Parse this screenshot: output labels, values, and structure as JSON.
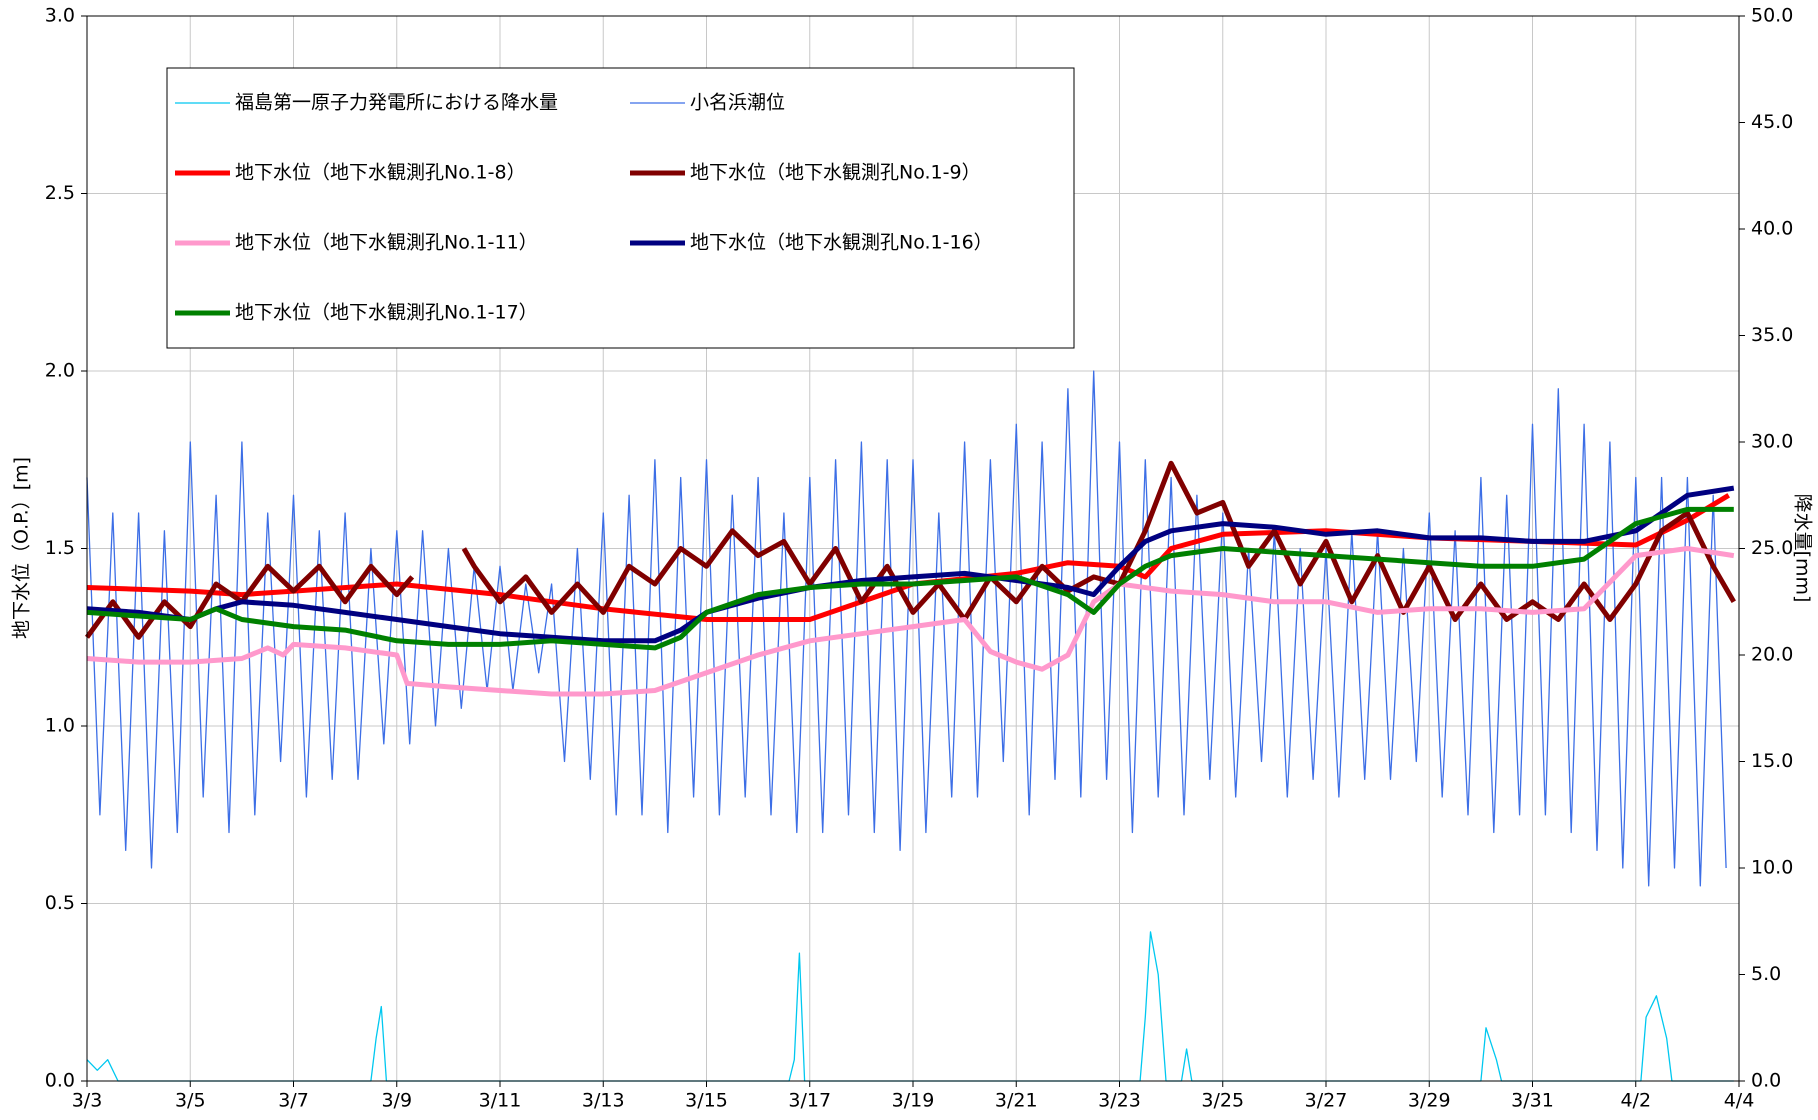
{
  "chart_data": {
    "type": "line",
    "ylabel": "地下水位（O.P.）[m]",
    "y2label": "降水量[mm]",
    "xlim": [
      0,
      32
    ],
    "xticks": [
      {
        "value": 0,
        "label": "3/3"
      },
      {
        "value": 2,
        "label": "3/5"
      },
      {
        "value": 4,
        "label": "3/7"
      },
      {
        "value": 6,
        "label": "3/9"
      },
      {
        "value": 8,
        "label": "3/11"
      },
      {
        "value": 10,
        "label": "3/13"
      },
      {
        "value": 12,
        "label": "3/15"
      },
      {
        "value": 14,
        "label": "3/17"
      },
      {
        "value": 16,
        "label": "3/19"
      },
      {
        "value": 18,
        "label": "3/21"
      },
      {
        "value": 20,
        "label": "3/23"
      },
      {
        "value": 22,
        "label": "3/25"
      },
      {
        "value": 24,
        "label": "3/27"
      },
      {
        "value": 26,
        "label": "3/29"
      },
      {
        "value": 28,
        "label": "3/31"
      },
      {
        "value": 30,
        "label": "4/2"
      },
      {
        "value": 32,
        "label": "4/4"
      }
    ],
    "ylim": [
      0,
      3
    ],
    "yticks": [
      {
        "value": 0,
        "label": "0.0"
      },
      0.5,
      {
        "value": 1,
        "label": "1.0"
      },
      1.5,
      {
        "value": 2,
        "label": "2.0"
      },
      2.5,
      {
        "value": 3,
        "label": "3.0"
      }
    ],
    "y2lim": [
      0,
      50
    ],
    "y2ticks": [
      {
        "value": 0,
        "label": "0.0"
      },
      {
        "value": 5,
        "label": "5.0"
      },
      {
        "value": 10,
        "label": "10.0"
      },
      {
        "value": 15,
        "label": "15.0"
      },
      {
        "value": 20,
        "label": "20.0"
      },
      {
        "value": 25,
        "label": "25.0"
      },
      {
        "value": 30,
        "label": "30.0"
      },
      {
        "value": 35,
        "label": "35.0"
      },
      {
        "value": 40,
        "label": "40.0"
      },
      {
        "value": 45,
        "label": "45.0"
      },
      {
        "value": 50,
        "label": "50.0"
      }
    ],
    "grid": true,
    "series": [
      {
        "name": "福島第一原子力発電所における降水量",
        "color": "#00c8f0",
        "style": "thin",
        "axis": "y2",
        "x": [
          0,
          0.2,
          0.4,
          0.6,
          5.5,
          5.6,
          5.7,
          5.8,
          13.6,
          13.7,
          13.8,
          13.9,
          20.4,
          20.5,
          20.6,
          20.75,
          20.9,
          21.2,
          21.3,
          21.4,
          27.0,
          27.1,
          27.3,
          27.4,
          30.1,
          30.2,
          30.4,
          30.6,
          30.7,
          31.9
        ],
        "values": [
          1,
          0.5,
          1,
          0,
          0,
          2,
          3.5,
          0,
          0,
          1,
          6,
          0,
          0,
          3,
          7,
          5,
          0,
          0,
          1.5,
          0,
          0,
          2.5,
          1,
          0,
          0,
          3,
          4,
          2,
          0,
          0
        ]
      },
      {
        "name": "小名浜潮位",
        "color": "#3c6ee6",
        "style": "thin",
        "x": [
          0,
          0.25,
          0.5,
          0.75,
          1,
          1.25,
          1.5,
          1.75,
          2,
          2.25,
          2.5,
          2.75,
          3,
          3.25,
          3.5,
          3.75,
          4,
          4.25,
          4.5,
          4.75,
          5,
          5.25,
          5.5,
          5.75,
          6,
          6.25,
          6.5,
          6.75,
          7,
          7.25,
          7.5,
          7.75,
          8,
          8.25,
          8.5,
          8.75,
          9,
          9.25,
          9.5,
          9.75,
          10,
          10.25,
          10.5,
          10.75,
          11,
          11.25,
          11.5,
          11.75,
          12,
          12.25,
          12.5,
          12.75,
          13,
          13.25,
          13.5,
          13.75,
          14,
          14.25,
          14.5,
          14.75,
          15,
          15.25,
          15.5,
          15.75,
          16,
          16.25,
          16.5,
          16.75,
          17,
          17.25,
          17.5,
          17.75,
          18,
          18.25,
          18.5,
          18.75,
          19,
          19.25,
          19.5,
          19.75,
          20,
          20.25,
          20.5,
          20.75,
          21,
          21.25,
          21.5,
          21.75,
          22,
          22.25,
          22.5,
          22.75,
          23,
          23.25,
          23.5,
          23.75,
          24,
          24.25,
          24.5,
          24.75,
          25,
          25.25,
          25.5,
          25.75,
          26,
          26.25,
          26.5,
          26.75,
          27,
          27.25,
          27.5,
          27.75,
          28,
          28.25,
          28.5,
          28.75,
          29,
          29.25,
          29.5,
          29.75,
          30,
          30.25,
          30.5,
          30.75,
          31,
          31.25,
          31.5,
          31.75
        ],
        "values": [
          1.7,
          0.75,
          1.6,
          0.65,
          1.6,
          0.6,
          1.55,
          0.7,
          1.8,
          0.8,
          1.65,
          0.7,
          1.8,
          0.75,
          1.6,
          0.9,
          1.65,
          0.8,
          1.55,
          0.85,
          1.6,
          0.85,
          1.5,
          0.95,
          1.55,
          0.95,
          1.55,
          1.0,
          1.5,
          1.05,
          1.45,
          1.1,
          1.45,
          1.1,
          1.4,
          1.15,
          1.4,
          0.9,
          1.5,
          0.85,
          1.6,
          0.75,
          1.65,
          0.75,
          1.75,
          0.7,
          1.7,
          0.8,
          1.75,
          0.75,
          1.65,
          0.8,
          1.7,
          0.75,
          1.6,
          0.7,
          1.7,
          0.7,
          1.75,
          0.75,
          1.8,
          0.7,
          1.75,
          0.65,
          1.75,
          0.7,
          1.6,
          0.8,
          1.8,
          0.8,
          1.75,
          0.9,
          1.85,
          0.75,
          1.8,
          0.85,
          1.95,
          0.8,
          2.0,
          0.85,
          1.8,
          0.7,
          1.75,
          0.8,
          1.7,
          0.75,
          1.65,
          0.85,
          1.6,
          0.8,
          1.5,
          0.9,
          1.55,
          0.8,
          1.5,
          0.85,
          1.5,
          0.8,
          1.55,
          0.85,
          1.55,
          0.85,
          1.5,
          0.9,
          1.6,
          0.8,
          1.55,
          0.75,
          1.7,
          0.7,
          1.65,
          0.75,
          1.85,
          0.75,
          1.95,
          0.7,
          1.85,
          0.65,
          1.8,
          0.6,
          1.7,
          0.55,
          1.7,
          0.6,
          1.7,
          0.55,
          1.65,
          0.6
        ]
      },
      {
        "name": "地下水位（地下水観測孔No.1-8）",
        "color": "#ff0000",
        "style": "thick",
        "x": [
          0,
          2,
          3,
          4,
          6,
          8,
          9,
          10,
          12,
          14,
          15,
          16,
          18,
          19,
          20,
          20.5,
          21,
          22,
          24,
          26,
          28,
          30,
          31,
          31.8
        ],
        "values": [
          1.39,
          1.38,
          1.37,
          1.38,
          1.4,
          1.37,
          1.35,
          1.33,
          1.3,
          1.3,
          1.35,
          1.4,
          1.43,
          1.46,
          1.45,
          1.42,
          1.5,
          1.54,
          1.55,
          1.53,
          1.52,
          1.51,
          1.58,
          1.65
        ]
      },
      {
        "name": "地下水位（地下水観測孔No.1-9）",
        "color": "#800000",
        "style": "thick",
        "x": [
          0,
          0.5,
          1,
          1.5,
          2,
          2.5,
          3,
          3.5,
          4,
          4.5,
          5,
          5.5,
          6,
          6.3,
          6.8,
          7.3,
          7.5,
          8,
          8.5,
          9,
          9.5,
          10,
          10.5,
          11,
          11.5,
          12,
          12.5,
          13,
          13.5,
          14,
          14.5,
          15,
          15.5,
          16,
          16.5,
          17,
          17.5,
          18,
          18.5,
          19,
          19.5,
          20,
          20.5,
          21,
          21.5,
          22,
          22.5,
          23,
          23.5,
          24,
          24.5,
          25,
          25.5,
          26,
          26.5,
          27,
          27.5,
          28,
          28.5,
          29,
          29.5,
          30,
          30.5,
          31,
          31.5,
          31.9
        ],
        "values": [
          1.25,
          1.35,
          1.25,
          1.35,
          1.28,
          1.4,
          1.35,
          1.45,
          1.38,
          1.45,
          1.35,
          1.45,
          1.37,
          1.42,
          null,
          1.5,
          1.45,
          1.35,
          1.42,
          1.32,
          1.4,
          1.32,
          1.45,
          1.4,
          1.5,
          1.45,
          1.55,
          1.48,
          1.52,
          1.4,
          1.5,
          1.35,
          1.45,
          1.32,
          1.4,
          1.3,
          1.42,
          1.35,
          1.45,
          1.38,
          1.42,
          1.4,
          1.55,
          1.74,
          1.6,
          1.63,
          1.45,
          1.55,
          1.4,
          1.52,
          1.35,
          1.48,
          1.32,
          1.45,
          1.3,
          1.4,
          1.3,
          1.35,
          1.3,
          1.4,
          1.3,
          1.4,
          1.55,
          1.6,
          1.45,
          1.35
        ]
      },
      {
        "name": "地下水位（地下水観測孔No.1-11）",
        "color": "#ff99cc",
        "style": "thick",
        "x": [
          0,
          1,
          2,
          3,
          3.5,
          3.8,
          4,
          5,
          6,
          6.2,
          7,
          8,
          9,
          10,
          11,
          12,
          13,
          14,
          15,
          16,
          17,
          17.5,
          18,
          18.5,
          19,
          19.5,
          20,
          21,
          22,
          23,
          24,
          25,
          26,
          27,
          28,
          29,
          30,
          31,
          31.9
        ],
        "values": [
          1.19,
          1.18,
          1.18,
          1.19,
          1.22,
          1.2,
          1.23,
          1.22,
          1.2,
          1.12,
          1.11,
          1.1,
          1.09,
          1.09,
          1.1,
          1.15,
          1.2,
          1.24,
          1.26,
          1.28,
          1.3,
          1.21,
          1.18,
          1.16,
          1.2,
          1.35,
          1.4,
          1.38,
          1.37,
          1.35,
          1.35,
          1.32,
          1.33,
          1.33,
          1.32,
          1.33,
          1.48,
          1.5,
          1.48
        ]
      },
      {
        "name": "地下水位（地下水観測孔No.1-16）",
        "color": "#000080",
        "style": "thick",
        "x": [
          0,
          1,
          2,
          2.5,
          3,
          4,
          5,
          6,
          7,
          8,
          9,
          10,
          11,
          11.5,
          12,
          13,
          14,
          15,
          16,
          17,
          18,
          19,
          19.5,
          20,
          20.5,
          21,
          22,
          23,
          24,
          25,
          26,
          27,
          28,
          29,
          30,
          31,
          31.9
        ],
        "values": [
          1.33,
          1.32,
          1.3,
          1.33,
          1.35,
          1.34,
          1.32,
          1.3,
          1.28,
          1.26,
          1.25,
          1.24,
          1.24,
          1.27,
          1.32,
          1.36,
          1.39,
          1.41,
          1.42,
          1.43,
          1.41,
          1.39,
          1.37,
          1.45,
          1.52,
          1.55,
          1.57,
          1.56,
          1.54,
          1.55,
          1.53,
          1.53,
          1.52,
          1.52,
          1.55,
          1.65,
          1.67
        ]
      },
      {
        "name": "地下水位（地下水観測孔No.1-17）",
        "color": "#008000",
        "style": "thick",
        "x": [
          0,
          1,
          2,
          2.5,
          3,
          4,
          5,
          6,
          7,
          8,
          9,
          10,
          11,
          11.5,
          12,
          13,
          14,
          15,
          16,
          17,
          18,
          19,
          19.5,
          20,
          20.5,
          21,
          22,
          23,
          24,
          25,
          26,
          27,
          28,
          29,
          30,
          31,
          31.9
        ],
        "values": [
          1.32,
          1.31,
          1.3,
          1.33,
          1.3,
          1.28,
          1.27,
          1.24,
          1.23,
          1.23,
          1.24,
          1.23,
          1.22,
          1.25,
          1.32,
          1.37,
          1.39,
          1.4,
          1.4,
          1.41,
          1.42,
          1.37,
          1.32,
          1.4,
          1.45,
          1.48,
          1.5,
          1.49,
          1.48,
          1.47,
          1.46,
          1.45,
          1.45,
          1.47,
          1.57,
          1.61,
          1.61
        ]
      }
    ]
  }
}
